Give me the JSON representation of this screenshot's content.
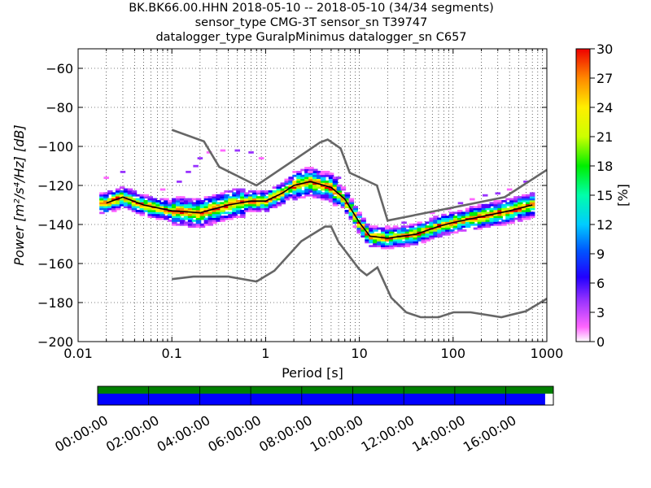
{
  "header": {
    "title_line1": "BK.BK66.00.HHN   2018-05-10 -- 2018-05-10  (34/34 segments)",
    "title_line2": "sensor_type CMG-3T sensor_sn T39747",
    "title_line3": "datalogger_type GuralpMinimus datalogger_sn C657"
  },
  "chart_data": {
    "type": "heatmap",
    "title": "BK.BK66.00.HHN   2018-05-10 -- 2018-05-10  (34/34 segments)",
    "xlabel": "Period [s]",
    "ylabel": "Power [m²/s⁴/Hz] [dB]",
    "x_scale": "log",
    "xlim": [
      0.01,
      1000
    ],
    "ylim": [
      -200,
      -50
    ],
    "x_ticks": [
      "0.01",
      "0.1",
      "1",
      "10",
      "100",
      "1000"
    ],
    "y_ticks": [
      "−60",
      "−80",
      "−100",
      "−120",
      "−140",
      "−160",
      "−180",
      "−200"
    ],
    "grid": "dotted",
    "colorbar": {
      "label": "[%]",
      "range": [
        0,
        30
      ],
      "ticks": [
        "0",
        "3",
        "6",
        "9",
        "12",
        "15",
        "18",
        "21",
        "24",
        "27",
        "30"
      ]
    },
    "mode_curve": [
      [
        0.02,
        -129
      ],
      [
        0.03,
        -126
      ],
      [
        0.05,
        -130
      ],
      [
        0.1,
        -133
      ],
      [
        0.2,
        -134
      ],
      [
        0.4,
        -130
      ],
      [
        0.7,
        -128
      ],
      [
        1.0,
        -128
      ],
      [
        1.5,
        -124
      ],
      [
        2.0,
        -120
      ],
      [
        3.0,
        -118
      ],
      [
        5.0,
        -121
      ],
      [
        7.0,
        -127
      ],
      [
        10.0,
        -139
      ],
      [
        13.0,
        -146
      ],
      [
        20.0,
        -147
      ],
      [
        40.0,
        -145
      ],
      [
        70.0,
        -141
      ],
      [
        100.0,
        -139
      ],
      [
        200.0,
        -136
      ],
      [
        400.0,
        -133
      ],
      [
        700.0,
        -130
      ]
    ],
    "noise_model_high": [
      [
        0.1,
        -91.5
      ],
      [
        0.22,
        -97.4
      ],
      [
        0.32,
        -110.5
      ],
      [
        0.8,
        -120
      ],
      [
        3.8,
        -98
      ],
      [
        4.6,
        -96.5
      ],
      [
        6.3,
        -101
      ],
      [
        7.9,
        -113.5
      ],
      [
        15.4,
        -120
      ],
      [
        20,
        -138
      ],
      [
        354.8,
        -126
      ],
      [
        1000,
        -112
      ]
    ],
    "noise_model_low": [
      [
        0.1,
        -168
      ],
      [
        0.17,
        -166.7
      ],
      [
        0.4,
        -166.7
      ],
      [
        0.8,
        -169.2
      ],
      [
        1.24,
        -163.7
      ],
      [
        2.4,
        -148.6
      ],
      [
        4.3,
        -141.1
      ],
      [
        5.0,
        -141.1
      ],
      [
        6.0,
        -149
      ],
      [
        10,
        -163
      ],
      [
        12,
        -166
      ],
      [
        15.6,
        -162
      ],
      [
        21.9,
        -177.5
      ],
      [
        31.6,
        -185
      ],
      [
        45,
        -187.5
      ],
      [
        70,
        -187.5
      ],
      [
        101,
        -185
      ],
      [
        154,
        -185
      ],
      [
        328,
        -187.5
      ],
      [
        600,
        -184.4
      ],
      [
        1000,
        -178
      ]
    ]
  },
  "timeline": {
    "tick_labels": [
      "00:00:00",
      "02:00:00",
      "04:00:00",
      "06:00:00",
      "08:00:00",
      "10:00:00",
      "12:00:00",
      "14:00:00",
      "16:00:00"
    ],
    "data_coverage_fraction": 0.982,
    "colors": {
      "available": "#008000",
      "used": "#0000ff"
    }
  }
}
